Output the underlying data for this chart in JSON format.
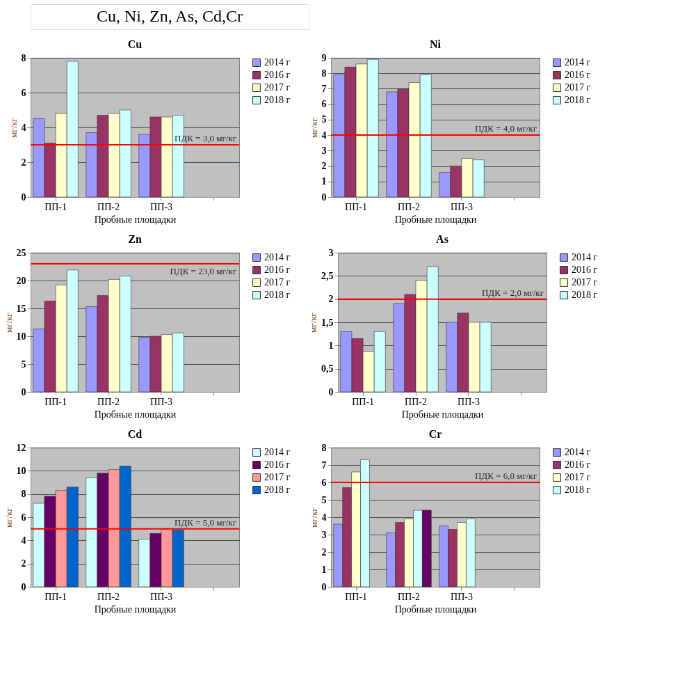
{
  "chart_data": [
    {
      "type": "other",
      "title": "Cu, Ni, Zn, As, Cd,Cr"
    },
    {
      "type": "bar",
      "title": "Cu",
      "xlabel": "Пробные площадки",
      "ylabel": "мг/кг",
      "categories": [
        "ПП-1",
        "ПП-2",
        "ПП-3",
        null
      ],
      "ylim": [
        0,
        8
      ],
      "yticks": [
        0,
        2,
        4,
        6,
        8
      ],
      "grid": "y",
      "legend": "right",
      "series": [
        {
          "name": "2014 г",
          "color": "#9999ff",
          "values": [
            4.5,
            3.7,
            3.6,
            null
          ]
        },
        {
          "name": "2016 г",
          "color": "#993366",
          "values": [
            3.1,
            4.7,
            4.6,
            null
          ]
        },
        {
          "name": "2017 г",
          "color": "#ffffcc",
          "values": [
            4.8,
            4.8,
            4.6,
            null
          ]
        },
        {
          "name": "2018 г",
          "color": "#ccffff",
          "values": [
            7.8,
            5.0,
            4.7,
            null
          ]
        }
      ],
      "ref_lines": [
        {
          "axis": "y",
          "value": 3.0,
          "label": "ПДК = 3,0 мг/кг",
          "color": "#ff0000"
        }
      ]
    },
    {
      "type": "bar",
      "title": "Ni",
      "xlabel": "Пробные площадки",
      "ylabel": "мг/кг",
      "categories": [
        "ПП-1",
        "ПП-2",
        "ПП-3",
        null
      ],
      "ylim": [
        0,
        9
      ],
      "yticks": [
        0,
        1,
        2,
        3,
        4,
        5,
        6,
        7,
        8,
        9
      ],
      "grid": "y",
      "legend": "right",
      "series": [
        {
          "name": "2014 г",
          "color": "#9999ff",
          "values": [
            7.9,
            6.8,
            1.6,
            null
          ]
        },
        {
          "name": "2016 г",
          "color": "#993366",
          "values": [
            8.4,
            7.0,
            2.0,
            null
          ]
        },
        {
          "name": "2017 г",
          "color": "#ffffcc",
          "values": [
            8.6,
            7.4,
            2.5,
            null
          ]
        },
        {
          "name": "2018 г",
          "color": "#ccffff",
          "values": [
            8.9,
            7.9,
            2.4,
            null
          ]
        }
      ],
      "ref_lines": [
        {
          "axis": "y",
          "value": 4.0,
          "label": "ПДК = 4,0 мг/кг",
          "color": "#ff0000"
        }
      ]
    },
    {
      "type": "bar",
      "title": "Zn",
      "xlabel": "Пробные площадки",
      "ylabel": "мг/кг",
      "categories": [
        "ПП-1",
        "ПП-2",
        "ПП-3",
        null
      ],
      "ylim": [
        0,
        25
      ],
      "yticks": [
        0,
        5,
        10,
        15,
        20,
        25
      ],
      "grid": "y",
      "legend": "right",
      "series": [
        {
          "name": "2014 г",
          "color": "#9999ff",
          "values": [
            11.3,
            15.3,
            9.8,
            null
          ]
        },
        {
          "name": "2016 г",
          "color": "#993366",
          "values": [
            16.3,
            17.3,
            10.0,
            null
          ]
        },
        {
          "name": "2017 г",
          "color": "#ffffcc",
          "values": [
            19.2,
            20.2,
            10.3,
            null
          ]
        },
        {
          "name": "2018 г",
          "color": "#ccffff",
          "values": [
            21.9,
            20.8,
            10.6,
            null
          ]
        }
      ],
      "ref_lines": [
        {
          "axis": "y",
          "value": 23.0,
          "label": "ПДК = 23,0 мг/кг",
          "color": "#ff0000"
        }
      ]
    },
    {
      "type": "bar",
      "title": "As",
      "xlabel": "Пробные площадки",
      "ylabel": "мг/кг",
      "categories": [
        "ПП-1",
        "ПП-2",
        "ПП-3",
        null
      ],
      "ylim": [
        0,
        3
      ],
      "yticks": [
        0,
        {
          "value": 0.5,
          "label": "0,5"
        },
        1,
        {
          "value": 1.5,
          "label": "1,5"
        },
        2,
        {
          "value": 2.5,
          "label": "2,5"
        },
        3
      ],
      "grid": "y",
      "legend": "right",
      "series": [
        {
          "name": "2014 г",
          "color": "#9999ff",
          "values": [
            1.3,
            1.9,
            1.5,
            null
          ]
        },
        {
          "name": "2016 г",
          "color": "#993366",
          "values": [
            1.15,
            2.1,
            1.7,
            null
          ]
        },
        {
          "name": "2017 г",
          "color": "#ffffcc",
          "values": [
            0.87,
            2.4,
            1.5,
            null
          ]
        },
        {
          "name": "2018 г",
          "color": "#ccffff",
          "values": [
            1.3,
            2.7,
            1.5,
            null
          ]
        }
      ],
      "ref_lines": [
        {
          "axis": "y",
          "value": 2.0,
          "label": "ПДК = 2,0 мг/кг",
          "color": "#ff0000"
        }
      ]
    },
    {
      "type": "bar",
      "title": "Cd",
      "xlabel": "Пробные площадки",
      "ylabel": "мг/кг",
      "categories": [
        "ПП-1",
        "ПП-2",
        "ПП-3",
        null
      ],
      "ylim": [
        0,
        12
      ],
      "yticks": [
        0,
        2,
        4,
        6,
        8,
        10,
        12
      ],
      "grid": "y",
      "legend": "right",
      "series": [
        {
          "name": "2014 г",
          "color": "#ccffff",
          "values": [
            7.2,
            9.4,
            4.1,
            null
          ]
        },
        {
          "name": "2016 г",
          "color": "#660066",
          "values": [
            7.8,
            9.8,
            4.6,
            null
          ]
        },
        {
          "name": "2017 г",
          "color": "#ff9999",
          "values": [
            8.3,
            10.1,
            5.0,
            null
          ]
        },
        {
          "name": "2018 г",
          "color": "#0066cc",
          "values": [
            8.6,
            10.4,
            4.9,
            null
          ]
        }
      ],
      "ref_lines": [
        {
          "axis": "y",
          "value": 5.0,
          "label": "ПДК = 5,0 мг/кг",
          "color": "#ff0000"
        }
      ]
    },
    {
      "type": "bar",
      "title": "Cr",
      "xlabel": "Пробные площадки",
      "ylabel": "мг/кг",
      "categories": [
        "ПП-1",
        "ПП-2",
        "ПП-3",
        null
      ],
      "ylim": [
        0,
        8
      ],
      "yticks": [
        0,
        1,
        2,
        3,
        4,
        5,
        6,
        7,
        8
      ],
      "grid": "y",
      "legend": "right",
      "series": [
        {
          "name": "2014 г",
          "color": "#9999ff",
          "values": [
            3.6,
            3.1,
            3.5,
            null
          ]
        },
        {
          "name": "2016 г",
          "color": "#993366",
          "values": [
            5.7,
            3.7,
            3.3,
            null
          ]
        },
        {
          "name": "2017 г",
          "color": "#ffffcc",
          "values": [
            6.6,
            3.9,
            3.7,
            null
          ]
        },
        {
          "name": "2018 г",
          "color": "#ccffff",
          "values": [
            7.3,
            4.4,
            3.9,
            null
          ]
        },
        {
          "color": "#660066",
          "values": [
            null,
            4.4,
            null,
            null
          ]
        }
      ],
      "ref_lines": [
        {
          "axis": "y",
          "value": 6.0,
          "label": "ПДК = 6,0 мг/кг",
          "color": "#ff0000"
        }
      ]
    }
  ]
}
